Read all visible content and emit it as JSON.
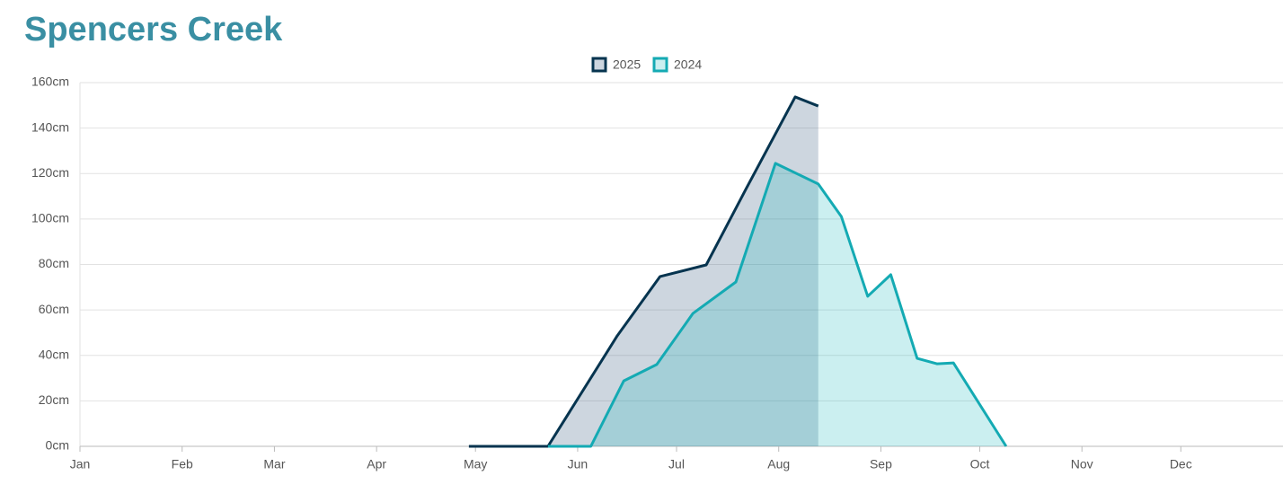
{
  "chart_data": {
    "type": "area",
    "title": "Spencers Creek",
    "xlim": [
      0,
      365
    ],
    "xticks": [
      {
        "value": 0,
        "label": "Jan"
      },
      {
        "value": 31,
        "label": "Feb"
      },
      {
        "value": 59,
        "label": "Mar"
      },
      {
        "value": 90,
        "label": "Apr"
      },
      {
        "value": 120,
        "label": "May"
      },
      {
        "value": 151,
        "label": "Jun"
      },
      {
        "value": 181,
        "label": "Jul"
      },
      {
        "value": 212,
        "label": "Aug"
      },
      {
        "value": 243,
        "label": "Sep"
      },
      {
        "value": 273,
        "label": "Oct"
      },
      {
        "value": 304,
        "label": "Nov"
      },
      {
        "value": 334,
        "label": "Dec"
      }
    ],
    "ylim": [
      0,
      160
    ],
    "yticks": [
      {
        "value": 0,
        "label": "0cm"
      },
      {
        "value": 20,
        "label": "20cm"
      },
      {
        "value": 40,
        "label": "40cm"
      },
      {
        "value": 60,
        "label": "60cm"
      },
      {
        "value": 80,
        "label": "80cm"
      },
      {
        "value": 100,
        "label": "100cm"
      },
      {
        "value": 120,
        "label": "120cm"
      },
      {
        "value": 140,
        "label": "140cm"
      },
      {
        "value": 160,
        "label": "160cm"
      }
    ],
    "grid": true,
    "legend": "top",
    "series": [
      {
        "name": "2025",
        "color": "#06344f",
        "fill_color": "rgba(60,95,130,0.26)",
        "x": [
          118,
          142,
          163,
          176,
          190,
          202,
          217,
          224
        ],
        "values": [
          0,
          0,
          48.6,
          74.7,
          79.8,
          113,
          153.7,
          149.7
        ]
      },
      {
        "name": "2024",
        "color": "#14aab3",
        "fill_color": "rgba(20,180,185,0.22)",
        "x": [
          142,
          155,
          165,
          175,
          186,
          199,
          211,
          224,
          231,
          239,
          246,
          254,
          260,
          265,
          281
        ],
        "values": [
          0,
          0,
          28.8,
          36,
          58.5,
          72.3,
          124.5,
          115.4,
          101.1,
          66,
          75.5,
          38.7,
          36.3,
          36.7,
          0
        ]
      }
    ]
  }
}
